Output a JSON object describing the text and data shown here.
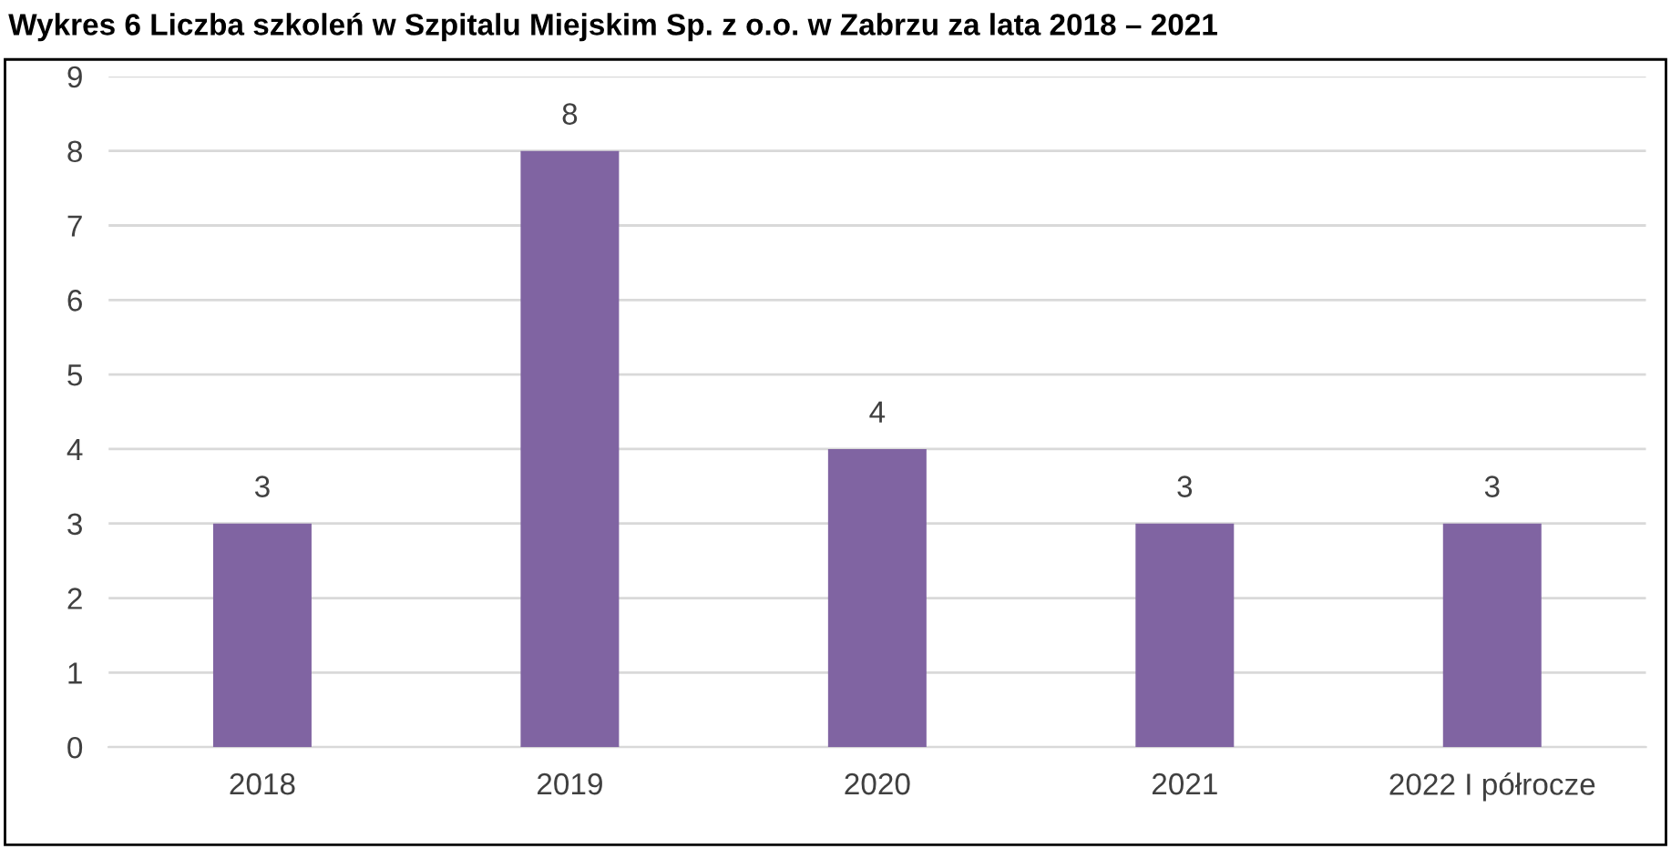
{
  "chart_data": {
    "type": "bar",
    "title": "Wykres 6 Liczba szkoleń w Szpitalu Miejskim Sp. z o.o. w Zabrzu za lata 2018 – 2021",
    "categories": [
      "2018",
      "2019",
      "2020",
      "2021",
      "2022 I półrocze"
    ],
    "values": [
      3,
      8,
      4,
      3,
      3
    ],
    "color": "#8064a2",
    "ylim": [
      0,
      9
    ],
    "yticks": [
      0,
      1,
      2,
      3,
      4,
      5,
      6,
      7,
      8,
      9
    ],
    "grid": "y",
    "data_labels": true
  }
}
